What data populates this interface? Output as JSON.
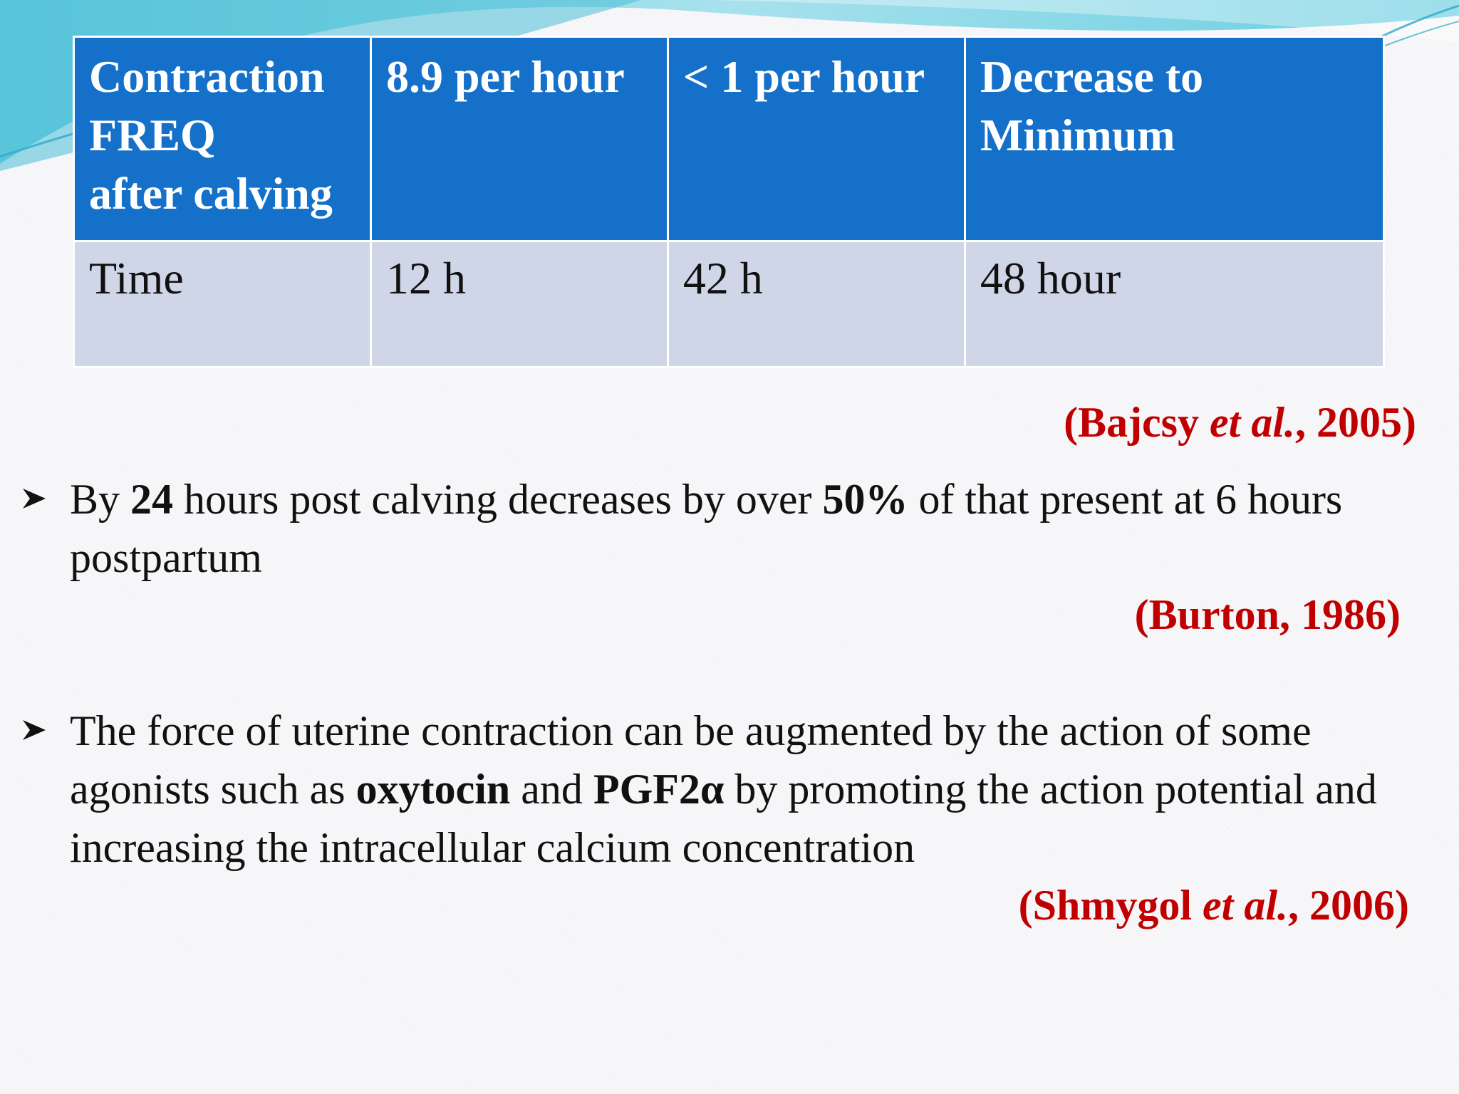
{
  "table": {
    "header": {
      "c1": {
        "line1": "Contraction",
        "line2": "FREQ",
        "line3": "after calving"
      },
      "c2": "8.9 per hour",
      "c3": "< 1 per hour",
      "c4": {
        "line1": "Decrease to",
        "line2": "Minimum"
      }
    },
    "row": {
      "c1": "Time",
      "c2": "12 h",
      "c3": "42 h",
      "c4": "48 hour"
    }
  },
  "citations": {
    "bajcsy": {
      "open": "(Bajcsy ",
      "italic": "et al.",
      "close": ", 2005)"
    },
    "burton": "(Burton, 1986)",
    "shmygol": {
      "open": "(Shmygol ",
      "italic": "et al.",
      "close": ", 2006)"
    }
  },
  "bullets": {
    "first": {
      "t1": "By ",
      "b1": "24",
      "t2": " hours post calving decreases by over ",
      "b2": "50%",
      "t3": " of  that present at 6 hours postpartum"
    },
    "second": {
      "t1": "The force of uterine contraction can be augmented by the action of some agonists such as ",
      "b1": "oxytocin",
      "t2": " and  ",
      "b2": "PGF2α",
      "t3": " by promoting the action potential and increasing the intracellular calcium concentration"
    }
  },
  "colors": {
    "header_bg": "#1470c9",
    "row_bg": "#cfd6e8",
    "citation": "#c00000",
    "accent_teal": "#3cc1d8"
  },
  "icons": {
    "bullet": "arrowhead-bullet-icon",
    "decor": "teal-swoosh-decoration"
  }
}
